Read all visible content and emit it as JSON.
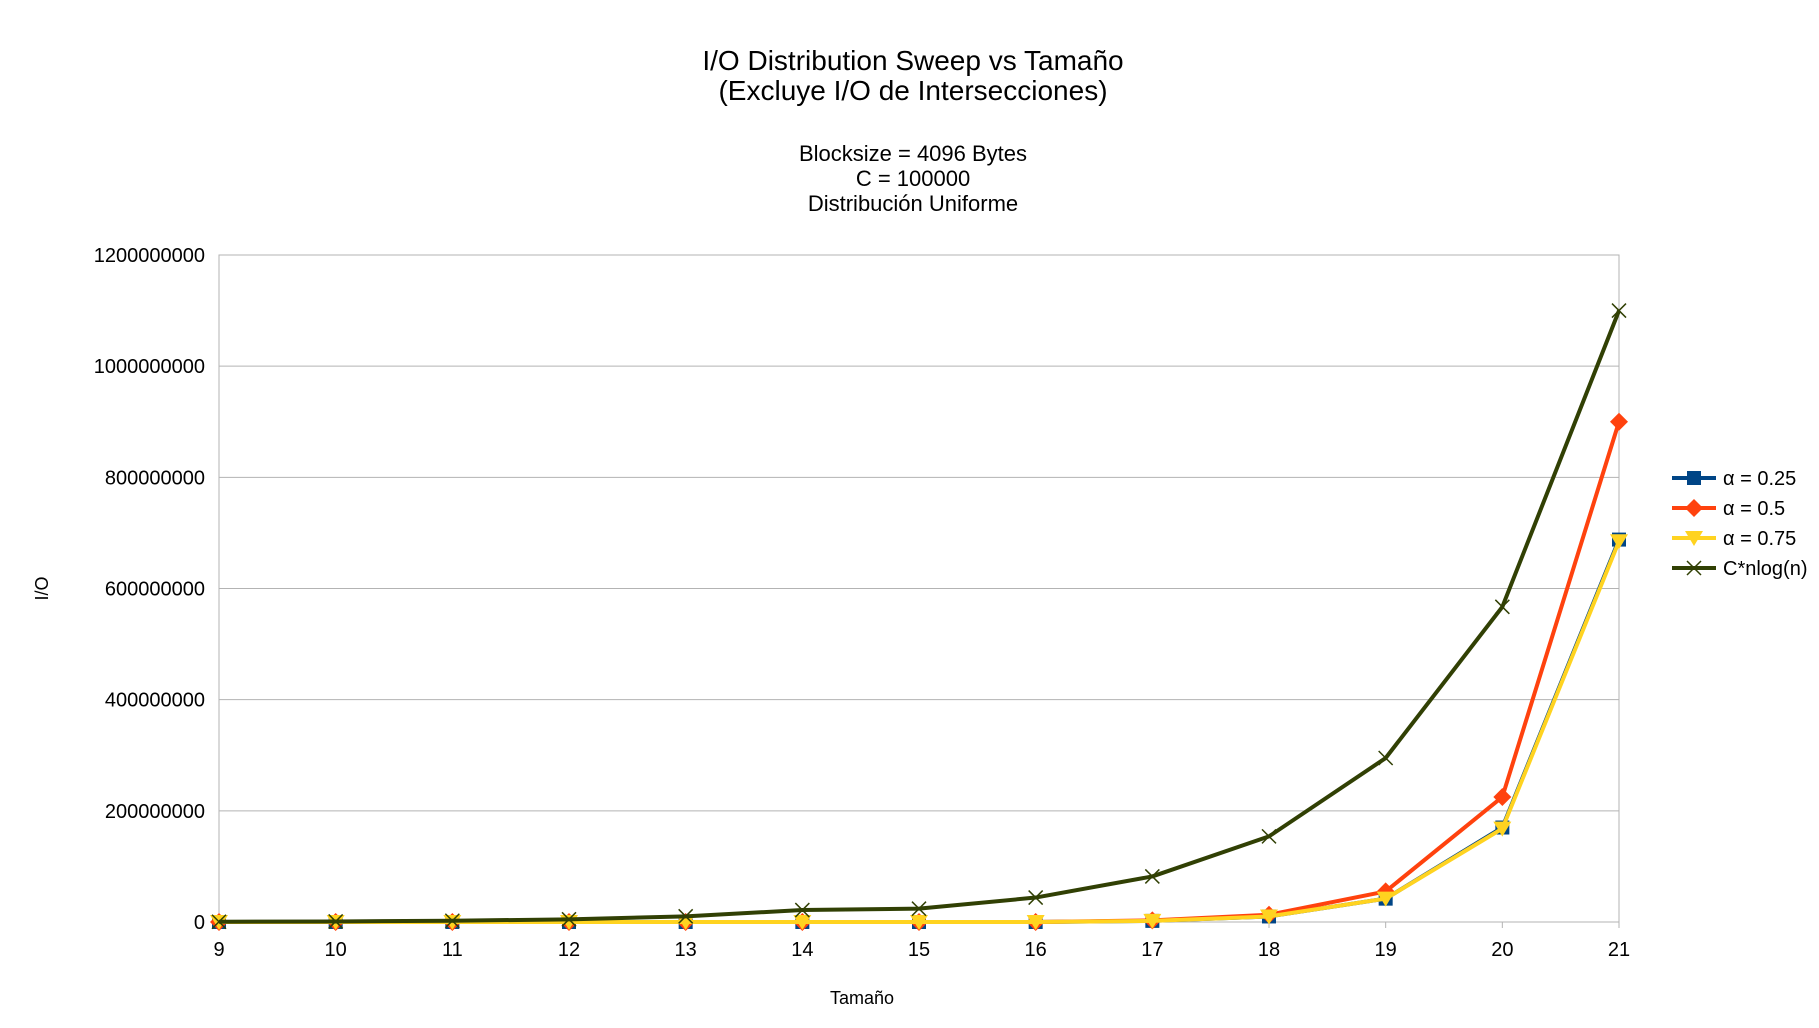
{
  "chart_data": {
    "type": "line",
    "title": [
      "I/O Distribution Sweep vs Tamaño",
      "(Excluye I/O de Intersecciones)"
    ],
    "subtitle": [
      "Blocksize = 4096 Bytes",
      "C = 100000",
      "Distribución Uniforme"
    ],
    "xlabel": "Tamaño",
    "ylabel": "I/O",
    "x": [
      9,
      10,
      11,
      12,
      13,
      14,
      15,
      16,
      17,
      18,
      19,
      20,
      21
    ],
    "ylim": [
      0,
      1200000000
    ],
    "yticks": [
      0,
      200000000,
      400000000,
      600000000,
      800000000,
      1000000000,
      1200000000
    ],
    "ytick_labels": [
      "0",
      "200000000",
      "400000000",
      "600000000",
      "800000000",
      "1000000000",
      "1200000000"
    ],
    "grid": true,
    "legend_position": "right",
    "series": [
      {
        "name": "α = 0.25",
        "color": "#004586",
        "marker": "square",
        "values": [
          0,
          0,
          0,
          0,
          0,
          0,
          0,
          0,
          2000000,
          10000000,
          42000000,
          170000000,
          688000000
        ]
      },
      {
        "name": "α = 0.5",
        "color": "#ff420e",
        "marker": "diamond",
        "values": [
          0,
          0,
          0,
          0,
          0,
          0,
          0,
          0,
          3000000,
          13000000,
          55000000,
          225000000,
          900000000
        ]
      },
      {
        "name": "α = 0.75",
        "color": "#ffd320",
        "marker": "triangle-down",
        "values": [
          0,
          0,
          0,
          0,
          0,
          0,
          0,
          0,
          2000000,
          10000000,
          42000000,
          168000000,
          685000000
        ]
      },
      {
        "name": "C*nlog(n)",
        "color": "#314004",
        "marker": "bowtie",
        "values": [
          500000,
          1000000,
          2250000,
          4800000,
          10200000,
          21500000,
          24000000,
          44000000,
          82000000,
          154000000,
          295000000,
          567000000,
          1100000000
        ]
      }
    ]
  }
}
